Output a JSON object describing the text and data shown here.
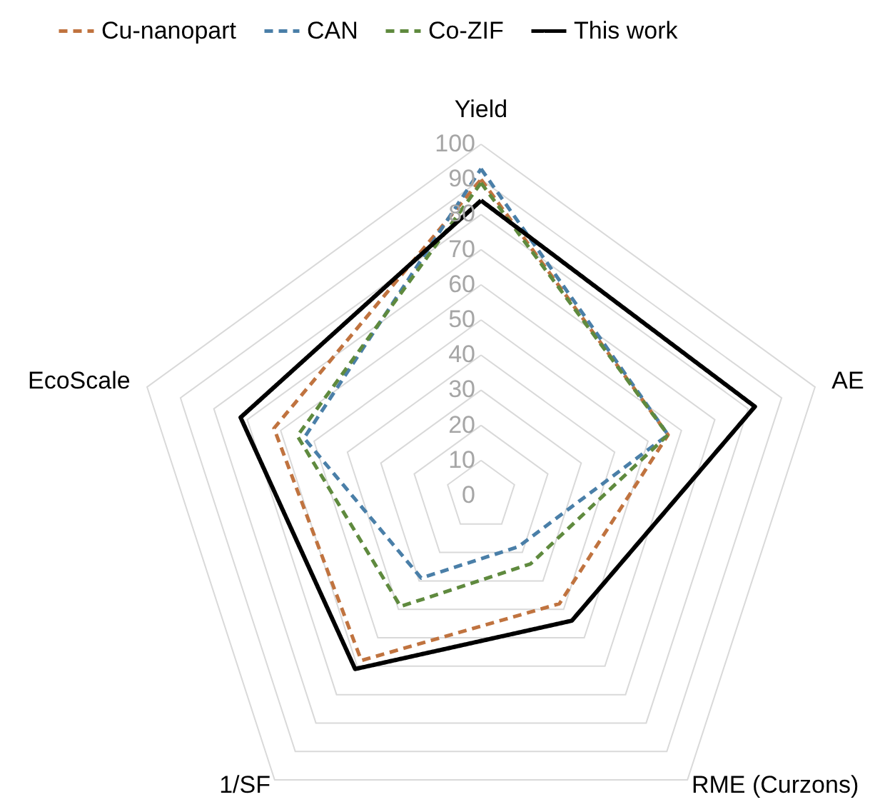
{
  "chart_data": {
    "type": "radar",
    "categories": [
      "Yield",
      "AE",
      "RME (Curzons)",
      "1/SF",
      "EcoScale"
    ],
    "series": [
      {
        "name": "Cu-nanopart",
        "color": "#c0733f",
        "line_style": "dashed",
        "values": [
          90,
          56,
          38,
          58,
          62
        ]
      },
      {
        "name": "CAN",
        "color": "#4a7fa8",
        "line_style": "dashed",
        "values": [
          93,
          56,
          18,
          29,
          53
        ]
      },
      {
        "name": "Co-ZIF",
        "color": "#5f8a3e",
        "line_style": "dashed",
        "values": [
          89,
          56,
          24,
          39,
          55
        ]
      },
      {
        "name": "This work",
        "color": "#000000",
        "line_style": "solid",
        "values": [
          84,
          82,
          44,
          61,
          72
        ]
      }
    ],
    "ylim": [
      0,
      100
    ],
    "yticks": [
      0,
      10,
      20,
      30,
      40,
      50,
      60,
      70,
      80,
      90,
      100
    ],
    "grid": true,
    "legend": "top"
  }
}
